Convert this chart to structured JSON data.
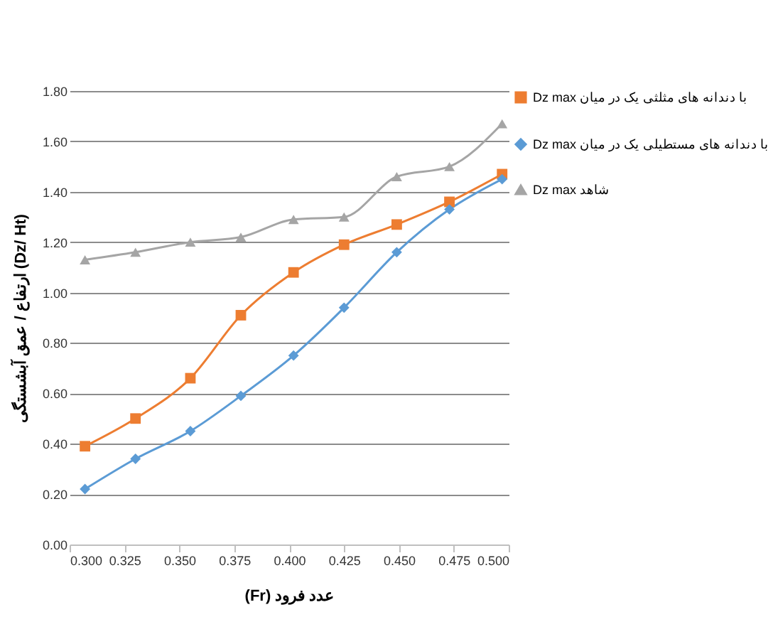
{
  "chart_data": {
    "type": "line",
    "xlabel": "(Fr)  عدد فرود",
    "ylabel": "ارتفاع / عمق آبشستگی (Dz/ Ht)",
    "x": [
      0.307,
      0.33,
      0.355,
      0.378,
      0.402,
      0.425,
      0.449,
      0.473,
      0.497
    ],
    "series": [
      {
        "name": "Dz max با دندانه های مثلثی یک در میان",
        "color": "#ed7d31",
        "marker": "square",
        "values": [
          0.39,
          0.5,
          0.66,
          0.91,
          1.08,
          1.19,
          1.27,
          1.36,
          1.47
        ]
      },
      {
        "name": "Dz max با دندانه های مستطیلی یک در میان",
        "color": "#5b9bd5",
        "marker": "diamond",
        "values": [
          0.22,
          0.34,
          0.45,
          0.59,
          0.75,
          0.94,
          1.16,
          1.33,
          1.45
        ]
      },
      {
        "name": "Dz max شاهد",
        "color": "#a5a5a5",
        "marker": "triangle",
        "values": [
          1.13,
          1.16,
          1.2,
          1.22,
          1.29,
          1.3,
          1.46,
          1.5,
          1.67
        ]
      }
    ],
    "xlim": [
      0.3,
      0.5
    ],
    "xticks": [
      {
        "value": 0.3,
        "label": "0.300"
      },
      {
        "value": 0.325,
        "label": "0.325"
      },
      {
        "value": 0.35,
        "label": "0.350"
      },
      {
        "value": 0.375,
        "label": "0.375"
      },
      {
        "value": 0.4,
        "label": "0.400"
      },
      {
        "value": 0.425,
        "label": "0.425"
      },
      {
        "value": 0.45,
        "label": "0.450"
      },
      {
        "value": 0.475,
        "label": "0.475"
      },
      {
        "value": 0.5,
        "label": "0.500"
      }
    ],
    "ylim": [
      0,
      1.8
    ],
    "yticks": [
      {
        "value": 0,
        "label": "0.00"
      },
      {
        "value": 0.2,
        "label": "0.20"
      },
      {
        "value": 0.4,
        "label": "0.40"
      },
      {
        "value": 0.6,
        "label": "0.60"
      },
      {
        "value": 0.8,
        "label": "0.80"
      },
      {
        "value": 1.0,
        "label": "1.00"
      },
      {
        "value": 1.2,
        "label": "1.20"
      },
      {
        "value": 1.4,
        "label": "1.40"
      },
      {
        "value": 1.6,
        "label": "1.60"
      },
      {
        "value": 1.8,
        "label": "1.80"
      }
    ],
    "grid": "y",
    "legend": "right",
    "line_style": "solid"
  }
}
